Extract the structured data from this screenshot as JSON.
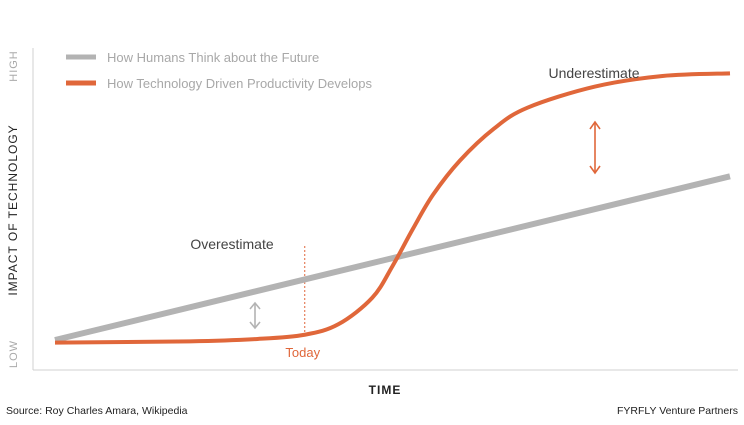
{
  "chart_data": {
    "type": "line",
    "xlabel": "TIME",
    "ylabel": "IMPACT OF TECHNOLOGY",
    "y_tick_labels": {
      "low": "LOW",
      "high": "HIGH"
    },
    "grid": false,
    "legend_placement": "top-left",
    "series": [
      {
        "name": "How Humans Think about the Future",
        "color": "#b3b3b3",
        "x": [
          0,
          1
        ],
        "y": [
          0.0,
          0.62
        ]
      },
      {
        "name": "How Technology Driven Productivity Develops",
        "color": "#e0673a",
        "x": [
          0,
          0.2,
          0.3,
          0.37,
          0.42,
          0.47,
          0.5,
          0.53,
          0.56,
          0.6,
          0.65,
          0.7,
          0.8,
          0.9,
          1.0
        ],
        "y": [
          -0.01,
          -0.005,
          0.004,
          0.02,
          0.06,
          0.16,
          0.28,
          0.42,
          0.55,
          0.68,
          0.8,
          0.88,
          0.96,
          1.0,
          1.01
        ]
      }
    ],
    "annotations": {
      "overestimate": "Overestimate",
      "underestimate": "Underestimate",
      "today": "Today",
      "today_x": 0.37
    }
  },
  "footer": {
    "source": "Source: Roy Charles Amara, Wikipedia",
    "credit": "FYRFLY Venture Partners"
  },
  "colors": {
    "human_line": "#b3b3b3",
    "tech_line": "#e0673a",
    "axis": "#d0d0d0",
    "annotation_text": "#444444",
    "today_text": "#e0673a"
  }
}
